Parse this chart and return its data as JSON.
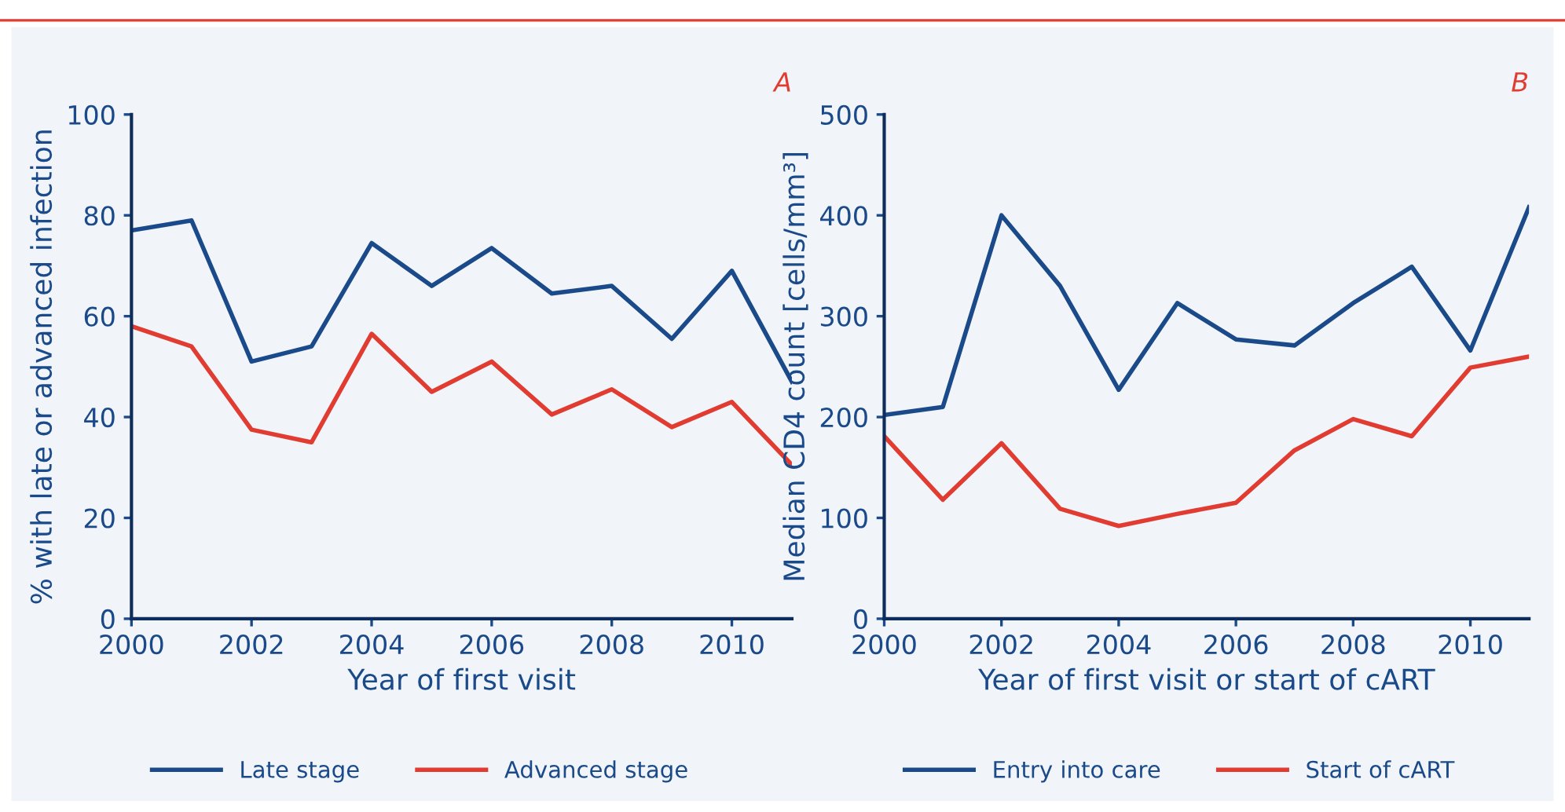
{
  "chart_data": [
    {
      "type": "line",
      "title": "A",
      "xlabel": "Year of first visit",
      "ylabel": "% with late or advanced infection",
      "x": [
        2000,
        2001,
        2002,
        2003,
        2004,
        2005,
        2006,
        2007,
        2008,
        2009,
        2010,
        2011
      ],
      "series": [
        {
          "name": "Late stage",
          "color": "#1a4a8a",
          "values": [
            77,
            79,
            51,
            54,
            74.5,
            66,
            73.5,
            64.5,
            66,
            55.5,
            69,
            47
          ]
        },
        {
          "name": "Advanced stage",
          "color": "#e03c31",
          "values": [
            58,
            54,
            37.5,
            35,
            56.5,
            45,
            51,
            40.5,
            45.5,
            38,
            43,
            30.5
          ]
        }
      ],
      "xlim": [
        2000,
        2011
      ],
      "xticks": [
        2000,
        2002,
        2004,
        2006,
        2008,
        2010
      ],
      "ylim": [
        0,
        100
      ],
      "yticks": [
        0,
        20,
        40,
        60,
        80,
        100
      ],
      "grid": false,
      "legend": "bottom",
      "marker": "none",
      "line_style": "solid"
    },
    {
      "type": "line",
      "title": "B",
      "xlabel": "Year of first visit or start of cART",
      "ylabel": "Median CD4 count [cells/mm³]",
      "x": [
        2000,
        2001,
        2002,
        2003,
        2004,
        2005,
        2006,
        2007,
        2008,
        2009,
        2010,
        2011
      ],
      "series": [
        {
          "name": "Entry into care",
          "color": "#1a4a8a",
          "values": [
            202,
            210,
            400,
            330,
            227,
            313,
            277,
            271,
            313,
            349,
            266,
            408
          ]
        },
        {
          "name": "Start of cART",
          "color": "#e03c31",
          "values": [
            181,
            118,
            174,
            109,
            92,
            104,
            115,
            167,
            198,
            181,
            249,
            260
          ]
        }
      ],
      "xlim": [
        2000,
        2011
      ],
      "xticks": [
        2000,
        2002,
        2004,
        2006,
        2008,
        2010
      ],
      "ylim": [
        0,
        500
      ],
      "yticks": [
        0,
        100,
        200,
        300,
        400,
        500
      ],
      "grid": false,
      "legend": "bottom",
      "marker": "none",
      "line_style": "solid"
    }
  ]
}
